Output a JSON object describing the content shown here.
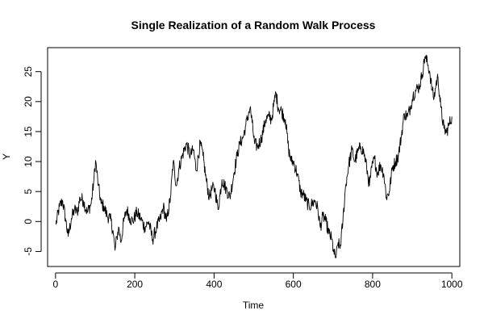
{
  "chart_data": {
    "type": "line",
    "title": "Single Realization of a Random Walk Process",
    "xlabel": "Time",
    "ylabel": "Y",
    "xlim": [
      -20,
      1020
    ],
    "ylim": [
      -7.5,
      29
    ],
    "xticks": [
      0,
      200,
      400,
      600,
      800,
      1000
    ],
    "yticks": [
      -5,
      0,
      5,
      10,
      15,
      20,
      25
    ],
    "grid": false,
    "series": [
      {
        "color": "#000000",
        "anchors": [
          [
            1,
            -0.5
          ],
          [
            10,
            2.5
          ],
          [
            18,
            3.5
          ],
          [
            25,
            0.5
          ],
          [
            32,
            -2.5
          ],
          [
            40,
            0.5
          ],
          [
            48,
            2
          ],
          [
            55,
            1.5
          ],
          [
            62,
            4
          ],
          [
            70,
            3.5
          ],
          [
            80,
            1.5
          ],
          [
            90,
            3
          ],
          [
            97,
            7
          ],
          [
            101,
            10.2
          ],
          [
            108,
            6
          ],
          [
            115,
            3
          ],
          [
            122,
            2.5
          ],
          [
            130,
            1
          ],
          [
            138,
            0.5
          ],
          [
            145,
            -1.5
          ],
          [
            150,
            -4.8
          ],
          [
            155,
            -2.5
          ],
          [
            160,
            -1
          ],
          [
            165,
            -3.5
          ],
          [
            172,
            0
          ],
          [
            180,
            2
          ],
          [
            188,
            0.5
          ],
          [
            195,
            0
          ],
          [
            205,
            1.5
          ],
          [
            215,
            0.5
          ],
          [
            225,
            -1
          ],
          [
            235,
            0
          ],
          [
            245,
            -3
          ],
          [
            255,
            -1
          ],
          [
            265,
            0.5
          ],
          [
            272,
            2.5
          ],
          [
            280,
            0
          ],
          [
            290,
            4
          ],
          [
            297,
            10
          ],
          [
            305,
            6
          ],
          [
            312,
            9
          ],
          [
            320,
            11
          ],
          [
            330,
            13
          ],
          [
            340,
            11
          ],
          [
            348,
            12
          ],
          [
            355,
            8.5
          ],
          [
            365,
            13
          ],
          [
            372,
            11
          ],
          [
            380,
            7
          ],
          [
            388,
            4
          ],
          [
            395,
            5.5
          ],
          [
            402,
            5.5
          ],
          [
            410,
            2
          ],
          [
            420,
            7
          ],
          [
            430,
            5.5
          ],
          [
            440,
            4
          ],
          [
            450,
            8
          ],
          [
            458,
            11
          ],
          [
            465,
            13
          ],
          [
            473,
            14
          ],
          [
            480,
            16
          ],
          [
            487,
            18
          ],
          [
            491,
            19
          ],
          [
            496,
            16.5
          ],
          [
            502,
            13
          ],
          [
            510,
            12.5
          ],
          [
            520,
            14
          ],
          [
            530,
            17
          ],
          [
            538,
            17.5
          ],
          [
            545,
            17
          ],
          [
            552,
            20
          ],
          [
            556,
            21.5
          ],
          [
            562,
            19
          ],
          [
            570,
            18.5
          ],
          [
            580,
            17
          ],
          [
            588,
            12
          ],
          [
            595,
            10
          ],
          [
            600,
            10
          ],
          [
            610,
            8
          ],
          [
            618,
            5
          ],
          [
            625,
            4.5
          ],
          [
            632,
            3.5
          ],
          [
            640,
            2.5
          ],
          [
            648,
            3
          ],
          [
            655,
            3.5
          ],
          [
            662,
            2
          ],
          [
            668,
            -1
          ],
          [
            675,
            1
          ],
          [
            682,
            0
          ],
          [
            690,
            -2
          ],
          [
            697,
            -3
          ],
          [
            703,
            -5.5
          ],
          [
            708,
            -6
          ],
          [
            713,
            -3.5
          ],
          [
            718,
            -4.5
          ],
          [
            725,
            0
          ],
          [
            732,
            6
          ],
          [
            740,
            9.5
          ],
          [
            748,
            12
          ],
          [
            755,
            10
          ],
          [
            762,
            11.5
          ],
          [
            770,
            12.5
          ],
          [
            778,
            11.5
          ],
          [
            785,
            9
          ],
          [
            792,
            6
          ],
          [
            798,
            9
          ],
          [
            805,
            10.5
          ],
          [
            812,
            8
          ],
          [
            820,
            9.5
          ],
          [
            828,
            8
          ],
          [
            835,
            4
          ],
          [
            842,
            5
          ],
          [
            850,
            9
          ],
          [
            858,
            10
          ],
          [
            865,
            11
          ],
          [
            872,
            14
          ],
          [
            880,
            18
          ],
          [
            888,
            17.5
          ],
          [
            895,
            19
          ],
          [
            902,
            21
          ],
          [
            910,
            22
          ],
          [
            918,
            22.5
          ],
          [
            925,
            24.5
          ],
          [
            932,
            27.5
          ],
          [
            938,
            26.5
          ],
          [
            944,
            25
          ],
          [
            950,
            22
          ],
          [
            955,
            20.5
          ],
          [
            960,
            23
          ],
          [
            965,
            24
          ],
          [
            972,
            19
          ],
          [
            980,
            15.5
          ],
          [
            986,
            14.8
          ],
          [
            992,
            16
          ],
          [
            1000,
            17.5
          ]
        ]
      }
    ]
  }
}
